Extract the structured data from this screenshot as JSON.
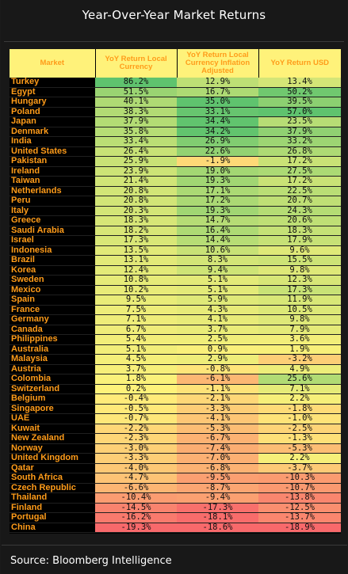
{
  "title": "Year-Over-Year Market Returns",
  "source": "Source: Bloomberg Intelligence",
  "colors": {
    "header_bg": "#fff27a",
    "header_text": "#ff9c1a",
    "market_text": "#ff9c1a",
    "positive_high": "#5fc36e",
    "neutral": "#fff27a",
    "negative_low": "#f8696b"
  },
  "chart_data": {
    "type": "table",
    "columns": [
      "Market",
      "YoY Return Local Currency",
      "YoY Return Local Currency Inflation Adjusted",
      "YoY Return USD"
    ],
    "rows": [
      {
        "market": "Turkey",
        "local": "86.2%",
        "infl": "12.9%",
        "usd": "13.4%"
      },
      {
        "market": "Egypt",
        "local": "51.5%",
        "infl": "16.7%",
        "usd": "50.2%"
      },
      {
        "market": "Hungary",
        "local": "40.1%",
        "infl": "35.0%",
        "usd": "39.5%"
      },
      {
        "market": "Poland",
        "local": "38.3%",
        "infl": "33.1%",
        "usd": "57.0%"
      },
      {
        "market": "Japan",
        "local": "37.9%",
        "infl": "34.4%",
        "usd": "23.5%"
      },
      {
        "market": "Denmark",
        "local": "35.8%",
        "infl": "34.2%",
        "usd": "37.9%"
      },
      {
        "market": "India",
        "local": "33.4%",
        "infl": "26.9%",
        "usd": "33.2%"
      },
      {
        "market": "United States",
        "local": "26.4%",
        "infl": "22.6%",
        "usd": "26.8%"
      },
      {
        "market": "Pakistan",
        "local": "25.9%",
        "infl": "-1.9%",
        "usd": "17.2%"
      },
      {
        "market": "Ireland",
        "local": "23.9%",
        "infl": "19.0%",
        "usd": "27.5%"
      },
      {
        "market": "Taiwan",
        "local": "21.4%",
        "infl": "19.3%",
        "usd": "17.2%"
      },
      {
        "market": "Netherlands",
        "local": "20.8%",
        "infl": "17.1%",
        "usd": "22.5%"
      },
      {
        "market": "Peru",
        "local": "20.8%",
        "infl": "17.2%",
        "usd": "20.7%"
      },
      {
        "market": "Italy",
        "local": "20.3%",
        "infl": "19.3%",
        "usd": "24.3%"
      },
      {
        "market": "Greece",
        "local": "18.3%",
        "infl": "14.7%",
        "usd": "20.6%"
      },
      {
        "market": "Saudi Arabia",
        "local": "18.2%",
        "infl": "16.4%",
        "usd": "18.3%"
      },
      {
        "market": "Israel",
        "local": "17.3%",
        "infl": "14.4%",
        "usd": "17.9%"
      },
      {
        "market": "Indonesia",
        "local": "13.5%",
        "infl": "10.6%",
        "usd": "9.6%"
      },
      {
        "market": "Brazil",
        "local": "13.1%",
        "infl": "8.3%",
        "usd": "15.5%"
      },
      {
        "market": "Korea",
        "local": "12.4%",
        "infl": "9.4%",
        "usd": "9.8%"
      },
      {
        "market": "Sweden",
        "local": "10.8%",
        "infl": "5.1%",
        "usd": "12.3%"
      },
      {
        "market": "Mexico",
        "local": "10.2%",
        "infl": "5.1%",
        "usd": "17.3%"
      },
      {
        "market": "Spain",
        "local": "9.5%",
        "infl": "5.9%",
        "usd": "11.9%"
      },
      {
        "market": "France",
        "local": "7.5%",
        "infl": "4.3%",
        "usd": "10.5%"
      },
      {
        "market": "Germany",
        "local": "7.1%",
        "infl": "4.1%",
        "usd": "9.8%"
      },
      {
        "market": "Canada",
        "local": "6.7%",
        "infl": "3.7%",
        "usd": "7.9%"
      },
      {
        "market": "Philippines",
        "local": "5.4%",
        "infl": "2.5%",
        "usd": "3.6%"
      },
      {
        "market": "Australia",
        "local": "5.1%",
        "infl": "0.9%",
        "usd": "1.9%"
      },
      {
        "market": "Malaysia",
        "local": "4.5%",
        "infl": "2.9%",
        "usd": "-3.2%"
      },
      {
        "market": "Austria",
        "local": "3.7%",
        "infl": "-0.8%",
        "usd": "4.9%"
      },
      {
        "market": "Colombia",
        "local": "1.8%",
        "infl": "-6.1%",
        "usd": "25.6%"
      },
      {
        "market": "Switzerland",
        "local": "0.2%",
        "infl": "-1.1%",
        "usd": "7.1%"
      },
      {
        "market": "Belgium",
        "local": "-0.4%",
        "infl": "-2.1%",
        "usd": "2.2%"
      },
      {
        "market": "Singapore",
        "local": "-0.5%",
        "infl": "-3.3%",
        "usd": "-1.8%"
      },
      {
        "market": "UAE",
        "local": "-0.7%",
        "infl": "-4.1%",
        "usd": "-1.0%"
      },
      {
        "market": "Kuwait",
        "local": "-2.2%",
        "infl": "-5.3%",
        "usd": "-2.5%"
      },
      {
        "market": "New Zealand",
        "local": "-2.3%",
        "infl": "-6.7%",
        "usd": "-1.3%"
      },
      {
        "market": "Norway",
        "local": "-3.0%",
        "infl": "-7.4%",
        "usd": "-5.3%"
      },
      {
        "market": "United Kingdom",
        "local": "-3.3%",
        "infl": "-7.0%",
        "usd": "2.2%"
      },
      {
        "market": "Qatar",
        "local": "-4.0%",
        "infl": "-6.8%",
        "usd": "-3.7%"
      },
      {
        "market": "South Africa",
        "local": "-4.7%",
        "infl": "-9.5%",
        "usd": "-10.3%"
      },
      {
        "market": "Czech Republic",
        "local": "-6.6%",
        "infl": "-8.7%",
        "usd": "-10.7%"
      },
      {
        "market": "Thailand",
        "local": "-10.4%",
        "infl": "-9.4%",
        "usd": "-13.8%"
      },
      {
        "market": "Finland",
        "local": "-14.5%",
        "infl": "-17.3%",
        "usd": "-12.5%"
      },
      {
        "market": "Portugal",
        "local": "-16.2%",
        "infl": "-18.1%",
        "usd": "-13.7%"
      },
      {
        "market": "China",
        "local": "-19.3%",
        "infl": "-18.6%",
        "usd": "-18.9%"
      }
    ]
  }
}
